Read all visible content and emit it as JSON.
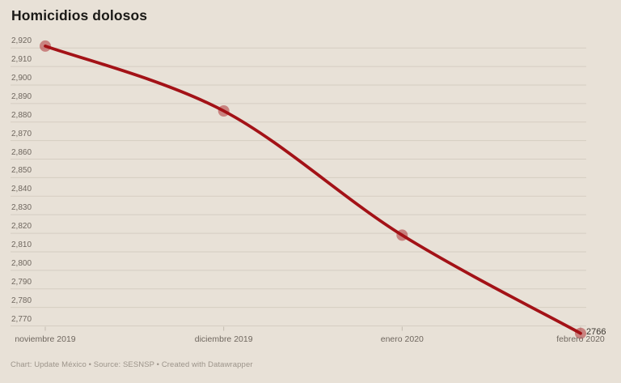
{
  "title": "Homicidios dolosos",
  "footer": "Chart: Update México • Source: SESNSP • Created with Datawrapper",
  "chart_data": {
    "type": "line",
    "title": "Homicidios dolosos",
    "categories": [
      "noviembre 2019",
      "diciembre 2019",
      "enero 2020",
      "febrero 2020"
    ],
    "series": [
      {
        "name": "Homicidios dolosos",
        "values": [
          2921,
          2886,
          2819,
          2766
        ]
      }
    ],
    "y_ticks": [
      2770,
      2780,
      2790,
      2800,
      2810,
      2820,
      2830,
      2840,
      2850,
      2860,
      2870,
      2880,
      2890,
      2900,
      2910,
      2920
    ],
    "ylim": [
      2766,
      2921
    ],
    "grid": "horizontal",
    "legend_position": "none",
    "last_value_label": "2766"
  },
  "colors": {
    "background": "#e8e1d7",
    "gridline": "#d5cdc2",
    "x_tick": "#c3bbb0",
    "line": "#a31217",
    "point": "rgba(163,18,23,0.45)",
    "title": "#1b1a17",
    "axis_label": "#6f675f",
    "value_label": "#38342e",
    "footer": "#9c948a"
  }
}
